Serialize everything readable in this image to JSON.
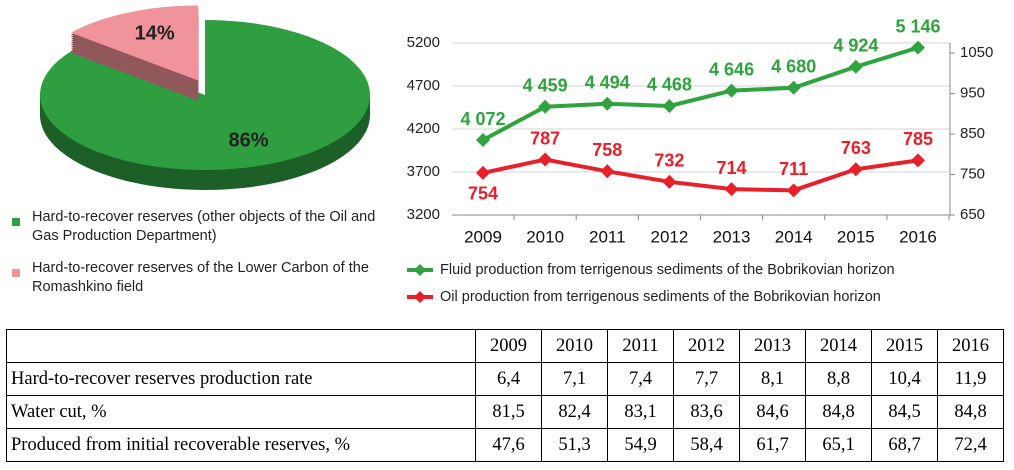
{
  "chart_data": [
    {
      "type": "pie",
      "categories": [
        "Hard-to-recover reserves (other objects of the Oil and Gas Production Department)",
        "Hard-to-recover reserves of the Lower Carbon of the Romashkino field"
      ],
      "values": [
        86,
        14
      ],
      "value_labels": [
        "86%",
        "14%"
      ],
      "colors": [
        "#2f9e41",
        "#f1939a"
      ]
    },
    {
      "type": "line",
      "categories": [
        "2009",
        "2010",
        "2011",
        "2012",
        "2013",
        "2014",
        "2015",
        "2016"
      ],
      "series": [
        {
          "name": "Fluid production from terrigenous sediments of the Bobrikovian horizon",
          "color": "#2fa33d",
          "values": [
            4072,
            4459,
            4494,
            4468,
            4646,
            4680,
            4924,
            5146
          ],
          "value_labels": [
            "4 072",
            "4 459",
            "4 494",
            "4 468",
            "4 646",
            "4 680",
            "4 924",
            "5 146"
          ]
        },
        {
          "name": "Oil production from terrigenous sediments of the Bobrikovian horizon",
          "color": "#e8202a",
          "axis": "y2",
          "values": [
            754,
            787,
            758,
            732,
            714,
            711,
            763,
            785
          ]
        }
      ],
      "ylim": [
        3200,
        5200
      ],
      "yticks": [
        3200,
        3700,
        4200,
        4700,
        5200
      ],
      "y2lim": [
        650,
        1075
      ],
      "y2ticks": [
        650,
        750,
        850,
        950,
        1050
      ],
      "grid": true
    }
  ],
  "table": {
    "header": [
      "2009",
      "2010",
      "2011",
      "2012",
      "2013",
      "2014",
      "2015",
      "2016"
    ],
    "rows": [
      {
        "label": "Hard-to-recover reserves production rate",
        "cells": [
          "6,4",
          "7,1",
          "7,4",
          "7,7",
          "8,1",
          "8,8",
          "10,4",
          "11,9"
        ]
      },
      {
        "label": "Water cut, %",
        "cells": [
          "81,5",
          "82,4",
          "83,1",
          "83,6",
          "84,6",
          "84,8",
          "84,5",
          "84,8"
        ]
      },
      {
        "label": "Produced from initial recoverable reserves, %",
        "cells": [
          "47,6",
          "51,3",
          "54,9",
          "58,4",
          "61,7",
          "65,1",
          "68,7",
          "72,4"
        ]
      }
    ]
  }
}
